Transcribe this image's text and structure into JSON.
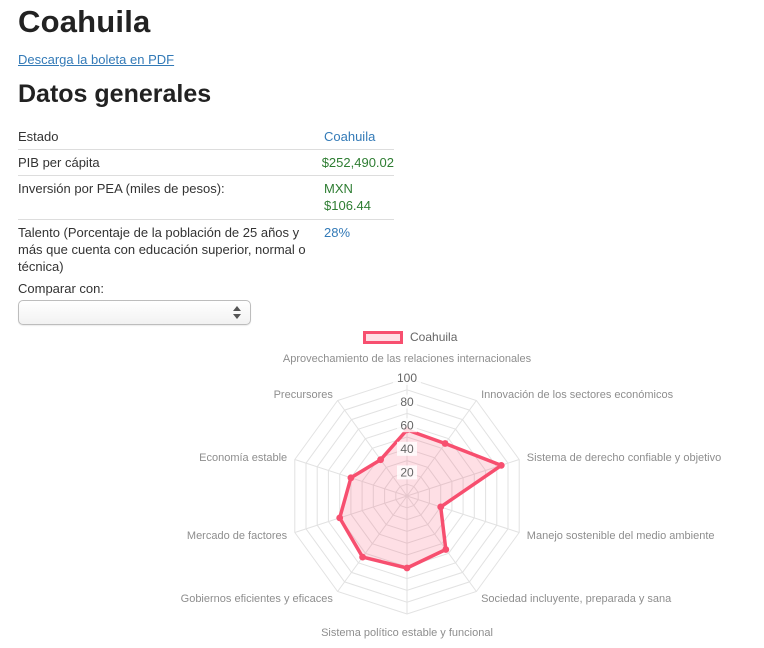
{
  "page": {
    "title": "Coahuila",
    "pdf_link": "Descarga la boleta en PDF",
    "section_title": "Datos generales",
    "compare_label": "Comparar con:",
    "compare_selected_value": ""
  },
  "table": {
    "rows": [
      {
        "label": "Estado",
        "value_lines": [
          "Coahuila"
        ],
        "value_color": "#337ab7"
      },
      {
        "label": "PIB per cápita",
        "value_lines": [
          "$252,490.02"
        ],
        "value_color": "#2e7d32"
      },
      {
        "label": "Inversión por PEA (miles de pesos):",
        "value_lines": [
          "MXN",
          "$106.44"
        ],
        "value_color": "#2e7d32"
      },
      {
        "label": "Talento (Porcentaje de la población de 25 años y más que cuenta con educación superior, normal o técnica)",
        "value_lines": [
          "28%"
        ],
        "value_color": "#337ab7"
      }
    ]
  },
  "chart_data": {
    "type": "radar",
    "categories": [
      "Aprovechamiento de las relaciones internacionales",
      "Innovación de los sectores económicos",
      "Sistema de derecho confiable y objetivo",
      "Manejo sostenible del medio ambiente",
      "Sociedad incluyente, preparada y sana",
      "Sistema político estable y funcional",
      "Gobiernos eficientes y eficaces",
      "Mercado de factores",
      "Economía estable",
      "Precursores"
    ],
    "series": [
      {
        "name": "Coahuila",
        "values": [
          56,
          55,
          84,
          30,
          56,
          61,
          64,
          60,
          50,
          38
        ],
        "border_color": "#f74f6f",
        "fill_color": "rgba(247,79,111,0.18)"
      }
    ],
    "ticks": [
      20,
      40,
      60,
      80,
      100
    ],
    "rlim": [
      0,
      100
    ],
    "grid_step": 10,
    "axis_start": "top",
    "direction": "clockwise",
    "legend_position": "top",
    "grid_color": "#e2e2e2",
    "tick_color": "#666666",
    "label_color": "#8e8e8e"
  }
}
